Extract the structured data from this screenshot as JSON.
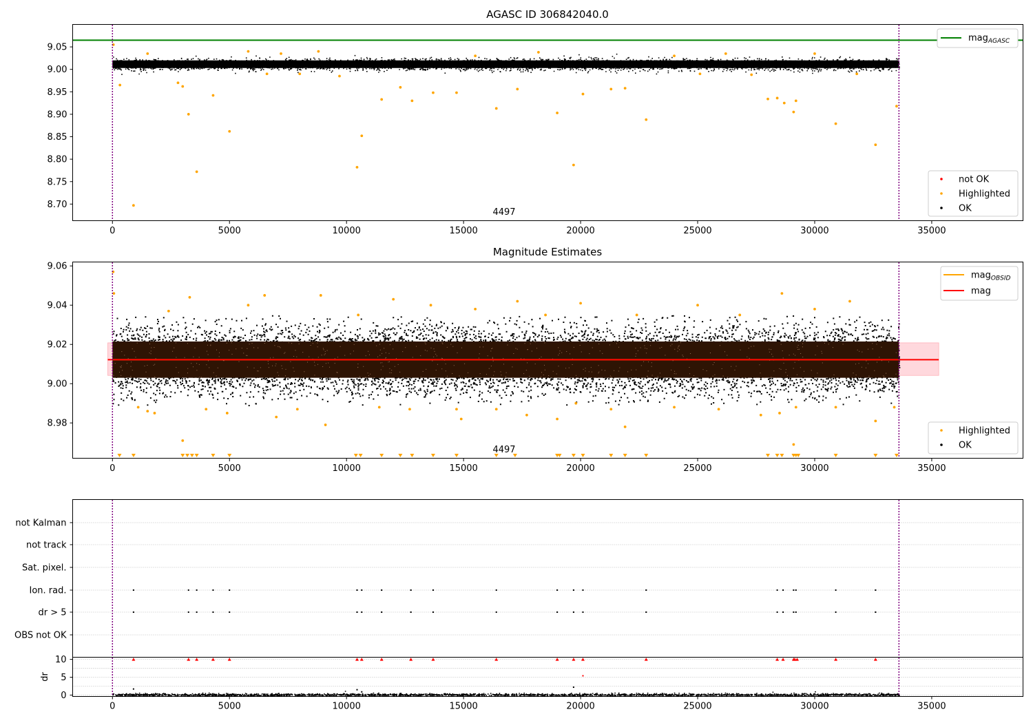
{
  "chart_data": [
    {
      "type": "scatter",
      "title": "AGASC ID 306842040.0",
      "xlabel": "",
      "ylabel": "",
      "xlim": [
        -1700,
        38900
      ],
      "ylim": [
        8.663,
        9.1
      ],
      "xticks": [
        0,
        5000,
        10000,
        15000,
        20000,
        25000,
        30000,
        35000
      ],
      "yticks": [
        8.7,
        8.75,
        8.8,
        8.85,
        8.9,
        8.95,
        9.0,
        9.05
      ],
      "xtick_labels": [
        "0",
        "5000",
        "10000",
        "15000",
        "20000",
        "25000",
        "30000",
        "35000"
      ],
      "ytick_labels": [
        "8.70",
        "8.75",
        "8.80",
        "8.85",
        "8.90",
        "8.95",
        "9.00",
        "9.05"
      ],
      "obsid_label": "4497",
      "obsid_boundaries": [
        0,
        33600
      ],
      "reference_lines": [
        {
          "name": "mag_AGASC",
          "y": 9.065,
          "color": "#008000"
        }
      ],
      "ok_band": {
        "x_range": [
          0,
          33600
        ],
        "y_range": [
          8.993,
          9.027
        ]
      },
      "series": [
        {
          "name": "not OK",
          "color": "#ff0000",
          "x": [],
          "y": []
        },
        {
          "name": "Highlighted",
          "color": "#ffa500",
          "x": [
            40,
            320,
            900,
            1500,
            2800,
            3000,
            3250,
            3600,
            4300,
            5000,
            5800,
            6600,
            7200,
            8000,
            8800,
            9700,
            10450,
            10650,
            11500,
            12300,
            12800,
            13700,
            14700,
            15500,
            16400,
            17300,
            18200,
            19000,
            19700,
            20100,
            21300,
            21900,
            22800,
            24000,
            25100,
            26200,
            27300,
            28000,
            28400,
            28700,
            29100,
            29200,
            30000,
            30900,
            31800,
            32600,
            33500
          ],
          "y": [
            9.055,
            8.965,
            8.697,
            9.035,
            8.97,
            8.962,
            8.9,
            8.772,
            8.942,
            8.862,
            9.04,
            8.99,
            9.035,
            8.99,
            9.04,
            8.985,
            8.782,
            8.852,
            8.933,
            8.96,
            8.93,
            8.948,
            8.948,
            9.03,
            8.913,
            8.956,
            9.038,
            8.903,
            8.787,
            8.945,
            8.956,
            8.958,
            8.888,
            9.03,
            8.99,
            9.035,
            8.988,
            8.934,
            8.936,
            8.925,
            8.905,
            8.93,
            9.035,
            8.879,
            8.99,
            8.832,
            8.918
          ],
          "labels": []
        },
        {
          "name": "OK",
          "color": "#000000",
          "x": [],
          "y": []
        }
      ],
      "legend": [
        {
          "placement": "top-right",
          "entries": [
            {
              "label": "mag",
              "subscript": "AGASC",
              "color": "#008000",
              "kind": "line"
            }
          ]
        },
        {
          "placement": "lower-right",
          "entries": [
            {
              "label": "not OK",
              "color": "#ff0000",
              "kind": "point"
            },
            {
              "label": "Highlighted",
              "color": "#ffa500",
              "kind": "point"
            },
            {
              "label": "OK",
              "color": "#000000",
              "kind": "point"
            }
          ]
        }
      ]
    },
    {
      "type": "scatter",
      "title": "Magnitude Estimates",
      "xlabel": "",
      "ylabel": "",
      "xlim": [
        -1700,
        38900
      ],
      "ylim": [
        8.962,
        9.062
      ],
      "xticks": [
        0,
        5000,
        10000,
        15000,
        20000,
        25000,
        30000,
        35000
      ],
      "yticks": [
        8.98,
        9.0,
        9.02,
        9.04,
        9.06
      ],
      "xtick_labels": [
        "0",
        "5000",
        "10000",
        "15000",
        "20000",
        "25000",
        "30000",
        "35000"
      ],
      "ytick_labels": [
        "8.98",
        "9.00",
        "9.02",
        "9.04",
        "9.06"
      ],
      "obsid_label": "4497",
      "obsid_boundaries": [
        0,
        33600
      ],
      "reference_lines": [
        {
          "name": "mag_OBSID",
          "y": 9.0122,
          "color": "#ffa500",
          "x_range": [
            0,
            33600
          ]
        },
        {
          "name": "mag",
          "y": 9.0122,
          "color": "#ff0000",
          "x_range": [
            -200,
            35300
          ]
        }
      ],
      "mag_band": {
        "x_range": [
          -200,
          35300
        ],
        "y_range": [
          9.0042,
          9.0208
        ],
        "color": "#ffd8dd"
      },
      "ok_band": {
        "x_range": [
          0,
          33600
        ],
        "y_range": [
          9.003,
          9.0215
        ]
      },
      "ok_spread": {
        "x_range": [
          0,
          33600
        ],
        "y_range": [
          8.989,
          9.035
        ]
      },
      "series": [
        {
          "name": "Highlighted",
          "color": "#ffa500",
          "x": [
            30,
            60,
            1100,
            1500,
            1800,
            2400,
            3000,
            3300,
            4000,
            4900,
            5800,
            6500,
            7000,
            7900,
            8900,
            9100,
            10500,
            11400,
            12000,
            12700,
            13600,
            14700,
            14900,
            15500,
            16400,
            17300,
            17700,
            18500,
            19000,
            19800,
            20000,
            21300,
            21900,
            22400,
            24000,
            25000,
            25900,
            26800,
            27700,
            28500,
            28600,
            29100,
            29200,
            30000,
            30900,
            31500,
            32600,
            33400
          ],
          "y": [
            9.057,
            9.046,
            8.988,
            8.986,
            8.985,
            9.037,
            8.971,
            9.044,
            8.987,
            8.985,
            9.04,
            9.045,
            8.983,
            8.987,
            9.045,
            8.979,
            9.035,
            8.988,
            9.043,
            8.987,
            9.04,
            8.987,
            8.982,
            9.038,
            8.987,
            9.042,
            8.984,
            9.035,
            8.982,
            8.99,
            9.041,
            8.987,
            8.978,
            9.035,
            8.988,
            9.04,
            8.987,
            9.035,
            8.984,
            8.985,
            9.046,
            8.969,
            8.988,
            9.038,
            8.988,
            9.042,
            8.981,
            8.988
          ],
          "clipped_low_x": [
            300,
            900,
            3000,
            3200,
            3400,
            3600,
            4300,
            5000,
            10400,
            10600,
            11500,
            12300,
            12800,
            13700,
            14700,
            16400,
            17200,
            19000,
            19100,
            19700,
            20100,
            21300,
            21900,
            22800,
            28000,
            28400,
            28600,
            29100,
            29200,
            29300,
            30900,
            32600,
            33500
          ]
        },
        {
          "name": "OK",
          "color": "#000000",
          "x": [],
          "y": []
        }
      ],
      "legend": [
        {
          "placement": "top-right",
          "entries": [
            {
              "label": "mag",
              "subscript": "OBSID",
              "color": "#ffa500",
              "kind": "line"
            },
            {
              "label": "mag",
              "subscript": "",
              "color": "#ff0000",
              "kind": "line"
            }
          ]
        },
        {
          "placement": "lower-right",
          "entries": [
            {
              "label": "Highlighted",
              "color": "#ffa500",
              "kind": "point"
            },
            {
              "label": "OK",
              "color": "#000000",
              "kind": "point"
            }
          ]
        }
      ]
    },
    {
      "type": "scatter",
      "title": "",
      "xlabel": "",
      "ylabel": "",
      "xlim": [
        -1700,
        38900
      ],
      "categories": [
        "not Kalman",
        "not track",
        "Sat. pixel.",
        "Ion. rad.",
        "dr > 5",
        "OBS not OK"
      ],
      "obsid_boundaries": [
        0,
        33600
      ],
      "flag_points": {
        "Ion. rad.": [
          900,
          3250,
          3600,
          4300,
          5000,
          10450,
          10650,
          11500,
          12750,
          13700,
          16400,
          19000,
          19700,
          20100,
          22800,
          28400,
          28650,
          29100,
          29200,
          30900,
          32600
        ],
        "dr > 5": [
          900,
          3250,
          3600,
          4300,
          5000,
          10450,
          10650,
          11500,
          12750,
          13700,
          16400,
          19000,
          19700,
          20100,
          22800,
          28400,
          28650,
          29100,
          29200,
          30900,
          32600
        ]
      }
    },
    {
      "type": "scatter",
      "title": "",
      "xlabel": "",
      "ylabel": "dr",
      "xlim": [
        -1700,
        38900
      ],
      "ylim": [
        -0.3,
        10.5
      ],
      "xticks": [
        0,
        5000,
        10000,
        15000,
        20000,
        25000,
        30000,
        35000
      ],
      "yticks": [
        0,
        5,
        10
      ],
      "xtick_labels": [
        "0",
        "5000",
        "10000",
        "15000",
        "20000",
        "25000",
        "30000",
        "35000"
      ],
      "ytick_labels": [
        "0",
        "5",
        "10"
      ],
      "obsid_boundaries": [
        0,
        33600
      ],
      "dr_outliers_clipped_x": [
        900,
        3250,
        3600,
        4300,
        5000,
        10450,
        10650,
        11500,
        12750,
        13700,
        16400,
        19000,
        19700,
        20100,
        22800,
        28400,
        28650,
        29100,
        29150,
        29250,
        30900,
        32600
      ],
      "dr_red_points": {
        "x": [
          20100
        ],
        "y": [
          5.4
        ]
      },
      "dr_black_points": {
        "x": [
          900,
          10450,
          10650,
          19700
        ],
        "y": [
          1.7,
          1.5,
          0.9,
          2.2
        ]
      }
    }
  ]
}
